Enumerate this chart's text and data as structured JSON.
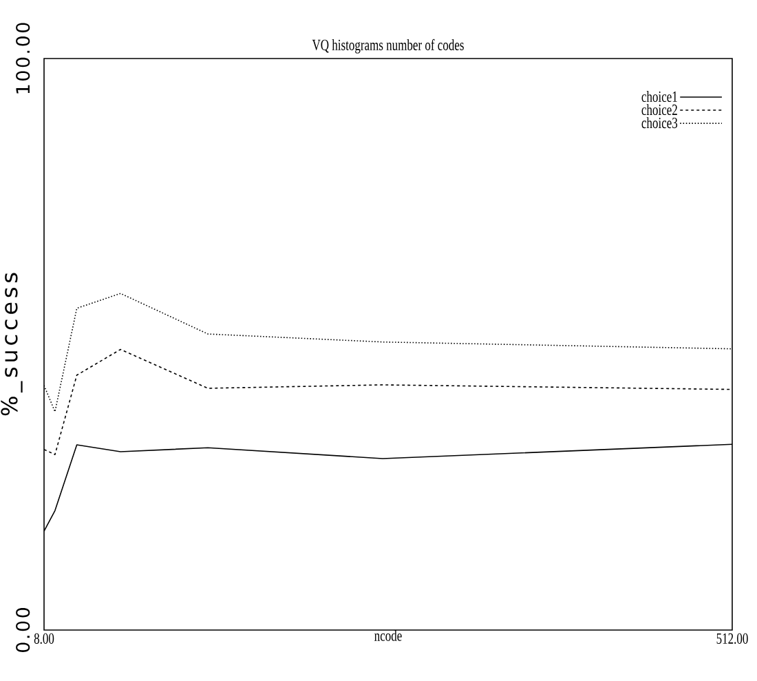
{
  "chart_data": {
    "type": "line",
    "title": "VQ histograms number of codes",
    "xlabel": "ncode",
    "ylabel": "%_success",
    "x": [
      8,
      16,
      32,
      64,
      128,
      256,
      512
    ],
    "series": [
      {
        "name": "choice1",
        "color": "#000000",
        "line_style": "solid",
        "values": [
          17.3,
          20.9,
          32.4,
          31.2,
          31.9,
          30.0,
          32.5
        ]
      },
      {
        "name": "choice2",
        "color": "#000000",
        "line_style": "dashed",
        "values": [
          31.6,
          30.7,
          44.6,
          49.1,
          42.3,
          42.9,
          42.1
        ]
      },
      {
        "name": "choice3",
        "color": "#000000",
        "line_style": "dotted",
        "values": [
          42.8,
          38.2,
          56.3,
          58.9,
          51.8,
          50.4,
          49.2
        ]
      }
    ],
    "xlim": [
      8,
      512
    ],
    "ylim": [
      0,
      100
    ],
    "xticks": [
      {
        "value": 8,
        "label": "8.00"
      },
      {
        "value": 512,
        "label": "512.00"
      }
    ],
    "yticks": [
      {
        "value": 0,
        "label": "0.00"
      },
      {
        "value": 100,
        "label": "100.00"
      }
    ],
    "legend": "top right",
    "marker": "none"
  }
}
